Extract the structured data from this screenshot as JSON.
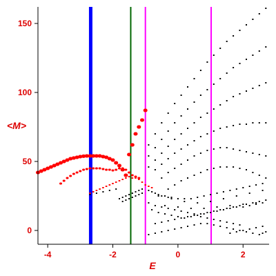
{
  "chart_data": {
    "type": "scatter",
    "xlabel": "E",
    "ylabel": "<M>",
    "xlim": [
      -4.3,
      2.8
    ],
    "ylim": [
      -10,
      162
    ],
    "x_ticks": [
      -4,
      -2,
      0,
      2
    ],
    "x_tick_labels": [
      "-4",
      "-2",
      "0",
      "2"
    ],
    "y_ticks": [
      0,
      50,
      100,
      150
    ],
    "y_tick_labels": [
      "0",
      "50",
      "100",
      "150"
    ],
    "vertical_lines": [
      {
        "x": -2.68,
        "color": "#0000ff",
        "style": "thick"
      },
      {
        "x": -1.45,
        "color": "#006600",
        "style": "medium"
      },
      {
        "x": -1.0,
        "color": "#ff00ff",
        "style": "medium"
      },
      {
        "x": 1.02,
        "color": "#ff00ff",
        "style": "medium"
      }
    ],
    "series": [
      {
        "color": "#ff0000",
        "marker": "large",
        "points": [
          [
            -4.3,
            42
          ],
          [
            -4.2,
            43
          ],
          [
            -4.1,
            44
          ],
          [
            -4.0,
            45
          ],
          [
            -3.9,
            46
          ],
          [
            -3.8,
            47
          ],
          [
            -3.7,
            48
          ],
          [
            -3.6,
            49
          ],
          [
            -3.5,
            50
          ],
          [
            -3.4,
            51
          ],
          [
            -3.3,
            52
          ],
          [
            -3.2,
            52.5
          ],
          [
            -3.1,
            53
          ],
          [
            -3.0,
            53.5
          ],
          [
            -2.9,
            53.8
          ],
          [
            -2.8,
            54
          ],
          [
            -2.7,
            54
          ],
          [
            -2.6,
            54
          ],
          [
            -2.5,
            54
          ],
          [
            -2.4,
            54
          ],
          [
            -2.3,
            53.5
          ],
          [
            -2.2,
            53
          ],
          [
            -2.1,
            52
          ],
          [
            -2.0,
            51
          ],
          [
            -1.9,
            49
          ],
          [
            -1.8,
            47
          ],
          [
            -1.7,
            44
          ],
          [
            -1.6,
            40
          ],
          [
            -1.5,
            55
          ],
          [
            -1.4,
            62
          ],
          [
            -1.3,
            70
          ],
          [
            -1.2,
            75
          ],
          [
            -1.1,
            80
          ],
          [
            -1.0,
            87
          ]
        ]
      },
      {
        "color": "#ff0000",
        "marker": "medium",
        "points": [
          [
            -3.6,
            34
          ],
          [
            -3.5,
            36
          ],
          [
            -3.4,
            38
          ],
          [
            -3.3,
            39.5
          ],
          [
            -3.2,
            41
          ],
          [
            -3.1,
            42
          ],
          [
            -3.0,
            43
          ],
          [
            -2.9,
            44
          ],
          [
            -2.8,
            44.5
          ],
          [
            -2.7,
            45
          ],
          [
            -2.6,
            45
          ],
          [
            -2.5,
            45
          ],
          [
            -2.4,
            45
          ],
          [
            -2.3,
            44.5
          ],
          [
            -2.2,
            44
          ],
          [
            -2.1,
            44
          ],
          [
            -2.0,
            43.5
          ],
          [
            -1.9,
            44
          ],
          [
            -1.8,
            45
          ],
          [
            -1.7,
            45
          ],
          [
            -1.6,
            44
          ],
          [
            -1.5,
            42
          ],
          [
            -1.4,
            40
          ],
          [
            -1.3,
            39
          ],
          [
            -1.2,
            38
          ]
        ]
      },
      {
        "color": "#ff0000",
        "marker": "small",
        "points": [
          [
            -2.7,
            27
          ],
          [
            -2.6,
            28
          ],
          [
            -2.5,
            29
          ],
          [
            -2.4,
            30
          ],
          [
            -2.3,
            31
          ],
          [
            -2.2,
            32
          ],
          [
            -2.1,
            33
          ],
          [
            -2.0,
            34
          ],
          [
            -1.9,
            35
          ],
          [
            -1.8,
            36
          ],
          [
            -1.7,
            37
          ],
          [
            -1.6,
            38
          ],
          [
            -1.5,
            39
          ],
          [
            -1.4,
            38
          ],
          [
            -1.3,
            38
          ],
          [
            -1.2,
            37
          ],
          [
            -1.1,
            35
          ],
          [
            -1.0,
            33
          ],
          [
            -0.9,
            32
          ],
          [
            -0.8,
            31
          ]
        ]
      },
      {
        "color": "#000000",
        "marker": "tiny",
        "points": [
          [
            -0.9,
            62
          ],
          [
            -0.7,
            70
          ],
          [
            -0.5,
            78
          ],
          [
            -0.3,
            85
          ],
          [
            -0.1,
            92
          ],
          [
            0.1,
            98
          ],
          [
            0.3,
            104
          ],
          [
            0.5,
            110
          ],
          [
            0.7,
            116
          ],
          [
            0.9,
            122
          ],
          [
            1.1,
            127
          ],
          [
            1.3,
            132
          ],
          [
            1.5,
            137
          ],
          [
            1.7,
            141
          ],
          [
            1.9,
            145
          ],
          [
            2.1,
            149
          ],
          [
            2.3,
            153
          ],
          [
            2.5,
            157
          ],
          [
            2.7,
            161
          ],
          [
            -0.9,
            54
          ],
          [
            -0.7,
            60
          ],
          [
            -0.5,
            66
          ],
          [
            -0.3,
            72
          ],
          [
            -0.1,
            78
          ],
          [
            0.1,
            83
          ],
          [
            0.3,
            88
          ],
          [
            0.5,
            93
          ],
          [
            0.7,
            98
          ],
          [
            0.9,
            102
          ],
          [
            1.1,
            106
          ],
          [
            1.3,
            110
          ],
          [
            1.5,
            114
          ],
          [
            1.7,
            118
          ],
          [
            1.9,
            121
          ],
          [
            2.1,
            124
          ],
          [
            2.3,
            127
          ],
          [
            2.5,
            130
          ],
          [
            2.7,
            133
          ],
          [
            -0.9,
            46
          ],
          [
            -0.7,
            51
          ],
          [
            -0.5,
            56
          ],
          [
            -0.3,
            61
          ],
          [
            -0.1,
            66
          ],
          [
            0.1,
            70
          ],
          [
            0.3,
            74
          ],
          [
            0.5,
            78
          ],
          [
            0.7,
            82
          ],
          [
            0.9,
            85
          ],
          [
            1.1,
            88
          ],
          [
            1.3,
            91
          ],
          [
            1.5,
            94
          ],
          [
            1.7,
            97
          ],
          [
            1.9,
            99
          ],
          [
            2.1,
            101
          ],
          [
            2.3,
            103
          ],
          [
            2.5,
            105
          ],
          [
            2.7,
            107
          ],
          [
            -0.7,
            44
          ],
          [
            -0.5,
            48
          ],
          [
            -0.3,
            52
          ],
          [
            -0.1,
            56
          ],
          [
            0.1,
            59
          ],
          [
            0.3,
            62
          ],
          [
            0.5,
            65
          ],
          [
            0.7,
            68
          ],
          [
            0.9,
            70
          ],
          [
            1.1,
            72
          ],
          [
            1.3,
            74
          ],
          [
            1.5,
            75
          ],
          [
            1.7,
            76
          ],
          [
            1.9,
            77
          ],
          [
            2.1,
            77
          ],
          [
            2.3,
            78
          ],
          [
            2.5,
            78
          ],
          [
            2.7,
            78
          ],
          [
            -0.5,
            38
          ],
          [
            -0.3,
            42
          ],
          [
            -0.1,
            45
          ],
          [
            0.1,
            48
          ],
          [
            0.3,
            51
          ],
          [
            0.5,
            54
          ],
          [
            0.7,
            56
          ],
          [
            0.9,
            58
          ],
          [
            1.1,
            59
          ],
          [
            1.3,
            60
          ],
          [
            1.5,
            60
          ],
          [
            1.7,
            59
          ],
          [
            1.9,
            58
          ],
          [
            2.1,
            57
          ],
          [
            2.3,
            56
          ],
          [
            2.5,
            55
          ],
          [
            2.7,
            54
          ],
          [
            -0.3,
            30
          ],
          [
            -0.1,
            33
          ],
          [
            0.1,
            36
          ],
          [
            0.3,
            38
          ],
          [
            0.5,
            40
          ],
          [
            0.7,
            42
          ],
          [
            0.9,
            44
          ],
          [
            1.1,
            45
          ],
          [
            1.3,
            46
          ],
          [
            1.5,
            46
          ],
          [
            1.7,
            46
          ],
          [
            1.9,
            45
          ],
          [
            2.1,
            44
          ],
          [
            2.3,
            42
          ],
          [
            2.5,
            40
          ],
          [
            2.7,
            38
          ],
          [
            -2.7,
            26
          ],
          [
            -2.5,
            27
          ],
          [
            -2.3,
            28
          ],
          [
            -2.1,
            29
          ],
          [
            -1.9,
            30
          ],
          [
            -1.7,
            21
          ],
          [
            -1.6,
            22
          ],
          [
            -1.5,
            23
          ],
          [
            -1.4,
            24
          ],
          [
            -1.3,
            25
          ],
          [
            -1.2,
            26
          ],
          [
            -1.1,
            27
          ],
          [
            -0.9,
            29
          ],
          [
            -0.8,
            28
          ],
          [
            -0.7,
            27
          ],
          [
            -0.6,
            26
          ],
          [
            -0.5,
            25
          ],
          [
            -0.4,
            25
          ],
          [
            -0.3,
            24
          ],
          [
            -0.2,
            24
          ],
          [
            0.0,
            23
          ],
          [
            0.2,
            23
          ],
          [
            0.4,
            23
          ],
          [
            0.6,
            24
          ],
          [
            0.8,
            25
          ],
          [
            1.0,
            26
          ],
          [
            1.2,
            27
          ],
          [
            1.4,
            28
          ],
          [
            1.6,
            29
          ],
          [
            1.8,
            30
          ],
          [
            2.0,
            31
          ],
          [
            2.2,
            32
          ],
          [
            2.4,
            33
          ],
          [
            2.6,
            34
          ],
          [
            -0.9,
            20
          ],
          [
            -0.7,
            18
          ],
          [
            -0.5,
            17
          ],
          [
            -0.3,
            16
          ],
          [
            -0.1,
            15
          ],
          [
            0.1,
            14
          ],
          [
            0.3,
            13
          ],
          [
            0.5,
            12
          ],
          [
            0.7,
            12
          ],
          [
            0.9,
            13
          ],
          [
            1.1,
            14
          ],
          [
            1.3,
            15
          ],
          [
            1.5,
            16
          ],
          [
            1.7,
            17
          ],
          [
            1.9,
            18
          ],
          [
            2.1,
            19
          ],
          [
            2.3,
            20
          ],
          [
            2.5,
            21
          ],
          [
            2.7,
            22
          ],
          [
            -0.8,
            15
          ],
          [
            -0.6,
            13
          ],
          [
            -0.4,
            12
          ],
          [
            -0.2,
            11
          ],
          [
            0.0,
            10
          ],
          [
            0.2,
            9
          ],
          [
            0.4,
            10
          ],
          [
            0.6,
            11
          ],
          [
            0.8,
            12
          ],
          [
            1.0,
            13
          ],
          [
            1.2,
            14
          ],
          [
            1.4,
            15
          ],
          [
            1.6,
            16
          ],
          [
            1.8,
            17
          ],
          [
            2.0,
            17
          ],
          [
            2.2,
            18
          ],
          [
            2.4,
            19
          ],
          [
            2.6,
            20
          ],
          [
            -0.7,
            5
          ],
          [
            -0.5,
            6
          ],
          [
            -0.3,
            7
          ],
          [
            -0.1,
            8
          ],
          [
            0.1,
            9
          ],
          [
            0.3,
            10
          ],
          [
            0.5,
            11
          ],
          [
            0.7,
            10
          ],
          [
            0.9,
            9
          ],
          [
            1.1,
            8
          ],
          [
            1.3,
            7
          ],
          [
            1.5,
            6
          ],
          [
            1.7,
            5
          ],
          [
            1.9,
            4
          ],
          [
            -0.9,
            -3
          ],
          [
            -0.7,
            -2
          ],
          [
            -0.5,
            -1
          ],
          [
            -0.3,
            0
          ],
          [
            -0.1,
            1
          ],
          [
            0.1,
            2
          ],
          [
            0.3,
            3
          ],
          [
            0.5,
            4
          ],
          [
            0.7,
            5
          ],
          [
            0.9,
            5
          ],
          [
            1.1,
            4
          ],
          [
            1.3,
            3
          ],
          [
            1.5,
            2
          ],
          [
            1.7,
            1
          ],
          [
            1.9,
            0
          ],
          [
            2.1,
            -1
          ],
          [
            2.3,
            -2
          ],
          [
            2.5,
            -3
          ],
          [
            -0.6,
            25
          ],
          [
            -0.2,
            23
          ],
          [
            0.2,
            21
          ],
          [
            0.6,
            20
          ],
          [
            1.0,
            21
          ],
          [
            1.4,
            23
          ],
          [
            1.8,
            25
          ],
          [
            2.2,
            27
          ],
          [
            2.6,
            29
          ],
          [
            -0.4,
            18
          ],
          [
            0.0,
            17
          ],
          [
            0.4,
            16
          ],
          [
            0.8,
            16
          ],
          [
            1.2,
            17
          ],
          [
            1.6,
            18
          ],
          [
            2.0,
            19
          ],
          [
            2.4,
            20
          ],
          [
            1.6,
            -2
          ],
          [
            1.8,
            -1
          ],
          [
            2.0,
            0
          ],
          [
            2.2,
            1
          ],
          [
            2.4,
            2
          ],
          [
            2.6,
            3
          ],
          [
            2.6,
            -2
          ],
          [
            2.7,
            -1
          ],
          [
            -1.8,
            23
          ],
          [
            -1.7,
            24
          ],
          [
            -1.6,
            25
          ],
          [
            -1.5,
            26
          ],
          [
            -1.4,
            27
          ],
          [
            -1.3,
            28
          ],
          [
            -1.2,
            29
          ],
          [
            -1.1,
            30
          ]
        ]
      }
    ]
  }
}
